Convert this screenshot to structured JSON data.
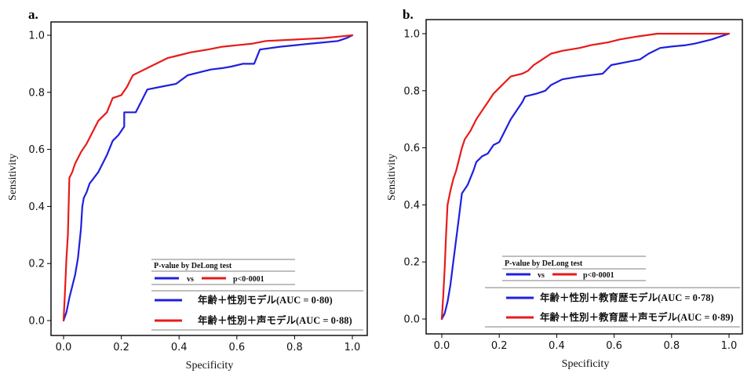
{
  "chart_data": [
    {
      "type": "line",
      "panel": "a.",
      "xlabel": "Specificity",
      "ylabel": "Sensitivity",
      "xlim": [
        0,
        1
      ],
      "ylim": [
        0,
        1
      ],
      "xticks": [
        "0.0",
        "0.2",
        "0.4",
        "0.6",
        "0.8",
        "1.0"
      ],
      "yticks": [
        "0.0",
        "0.2",
        "0.4",
        "0.6",
        "0.8",
        "1.0"
      ],
      "grid": false,
      "legend_position": "bottom-right",
      "legend": {
        "title": "P-value by DeLong test",
        "vs_label": "vs",
        "p_label": "p<0·0001"
      },
      "series": [
        {
          "name": "年齢＋性別モデル(AUC = 0·80)",
          "color": "#1f1fe0",
          "points": [
            [
              0,
              0
            ],
            [
              0.01,
              0.03
            ],
            [
              0.02,
              0.08
            ],
            [
              0.04,
              0.16
            ],
            [
              0.05,
              0.22
            ],
            [
              0.06,
              0.32
            ],
            [
              0.065,
              0.4
            ],
            [
              0.07,
              0.43
            ],
            [
              0.08,
              0.45
            ],
            [
              0.09,
              0.48
            ],
            [
              0.12,
              0.52
            ],
            [
              0.15,
              0.58
            ],
            [
              0.17,
              0.63
            ],
            [
              0.19,
              0.65
            ],
            [
              0.21,
              0.68
            ],
            [
              0.21,
              0.73
            ],
            [
              0.25,
              0.73
            ],
            [
              0.27,
              0.77
            ],
            [
              0.29,
              0.81
            ],
            [
              0.34,
              0.82
            ],
            [
              0.39,
              0.83
            ],
            [
              0.43,
              0.86
            ],
            [
              0.47,
              0.87
            ],
            [
              0.51,
              0.88
            ],
            [
              0.55,
              0.885
            ],
            [
              0.58,
              0.89
            ],
            [
              0.62,
              0.9
            ],
            [
              0.66,
              0.9
            ],
            [
              0.68,
              0.95
            ],
            [
              0.75,
              0.96
            ],
            [
              0.85,
              0.97
            ],
            [
              0.9,
              0.975
            ],
            [
              0.95,
              0.98
            ],
            [
              0.98,
              0.99
            ],
            [
              1.0,
              1.0
            ]
          ]
        },
        {
          "name": "年齢＋性別＋声モデル(AUC = 0·88)",
          "color": "#e81a1a",
          "points": [
            [
              0,
              0
            ],
            [
              0.005,
              0.1
            ],
            [
              0.01,
              0.22
            ],
            [
              0.015,
              0.3
            ],
            [
              0.02,
              0.5
            ],
            [
              0.03,
              0.52
            ],
            [
              0.04,
              0.55
            ],
            [
              0.05,
              0.57
            ],
            [
              0.06,
              0.59
            ],
            [
              0.08,
              0.62
            ],
            [
              0.1,
              0.66
            ],
            [
              0.12,
              0.7
            ],
            [
              0.15,
              0.73
            ],
            [
              0.17,
              0.78
            ],
            [
              0.2,
              0.79
            ],
            [
              0.22,
              0.82
            ],
            [
              0.23,
              0.84
            ],
            [
              0.24,
              0.86
            ],
            [
              0.26,
              0.87
            ],
            [
              0.3,
              0.89
            ],
            [
              0.32,
              0.9
            ],
            [
              0.36,
              0.92
            ],
            [
              0.4,
              0.93
            ],
            [
              0.44,
              0.94
            ],
            [
              0.5,
              0.95
            ],
            [
              0.55,
              0.96
            ],
            [
              0.6,
              0.965
            ],
            [
              0.65,
              0.97
            ],
            [
              0.7,
              0.98
            ],
            [
              0.8,
              0.985
            ],
            [
              0.9,
              0.99
            ],
            [
              0.95,
              0.995
            ],
            [
              1.0,
              1.0
            ]
          ]
        }
      ]
    },
    {
      "type": "line",
      "panel": "b.",
      "xlabel": "Specificity",
      "ylabel": "Sensitivity",
      "xlim": [
        0,
        1
      ],
      "ylim": [
        0,
        1
      ],
      "xticks": [
        "0.0",
        "0.2",
        "0.4",
        "0.6",
        "0.8",
        "1.0"
      ],
      "yticks": [
        "0.0",
        "0.2",
        "0.4",
        "0.6",
        "0.8",
        "1.0"
      ],
      "grid": false,
      "legend_position": "bottom-right",
      "legend": {
        "title": "P-value by DeLong test",
        "vs_label": "vs",
        "p_label": "p<0·0001"
      },
      "series": [
        {
          "name": "年齢＋性別＋教育歴モデル(AUC = 0·78)",
          "color": "#1f1fe0",
          "points": [
            [
              0,
              0
            ],
            [
              0.01,
              0.02
            ],
            [
              0.02,
              0.06
            ],
            [
              0.03,
              0.12
            ],
            [
              0.04,
              0.2
            ],
            [
              0.05,
              0.28
            ],
            [
              0.06,
              0.36
            ],
            [
              0.07,
              0.44
            ],
            [
              0.09,
              0.47
            ],
            [
              0.11,
              0.52
            ],
            [
              0.12,
              0.55
            ],
            [
              0.14,
              0.57
            ],
            [
              0.16,
              0.58
            ],
            [
              0.18,
              0.61
            ],
            [
              0.2,
              0.62
            ],
            [
              0.22,
              0.66
            ],
            [
              0.24,
              0.7
            ],
            [
              0.26,
              0.73
            ],
            [
              0.28,
              0.76
            ],
            [
              0.29,
              0.78
            ],
            [
              0.33,
              0.79
            ],
            [
              0.36,
              0.8
            ],
            [
              0.38,
              0.82
            ],
            [
              0.42,
              0.84
            ],
            [
              0.48,
              0.85
            ],
            [
              0.52,
              0.855
            ],
            [
              0.56,
              0.86
            ],
            [
              0.59,
              0.89
            ],
            [
              0.64,
              0.9
            ],
            [
              0.69,
              0.91
            ],
            [
              0.72,
              0.93
            ],
            [
              0.76,
              0.95
            ],
            [
              0.8,
              0.955
            ],
            [
              0.85,
              0.96
            ],
            [
              0.88,
              0.965
            ],
            [
              0.9,
              0.97
            ],
            [
              0.94,
              0.98
            ],
            [
              0.97,
              0.99
            ],
            [
              1.0,
              1.0
            ]
          ]
        },
        {
          "name": "年齢＋性別＋教育歴＋声モデル(AUC = 0·89)",
          "color": "#e81a1a",
          "points": [
            [
              0,
              0
            ],
            [
              0.005,
              0.08
            ],
            [
              0.01,
              0.18
            ],
            [
              0.015,
              0.3
            ],
            [
              0.02,
              0.4
            ],
            [
              0.03,
              0.45
            ],
            [
              0.04,
              0.49
            ],
            [
              0.05,
              0.52
            ],
            [
              0.06,
              0.56
            ],
            [
              0.07,
              0.6
            ],
            [
              0.08,
              0.63
            ],
            [
              0.1,
              0.66
            ],
            [
              0.12,
              0.7
            ],
            [
              0.14,
              0.73
            ],
            [
              0.16,
              0.76
            ],
            [
              0.18,
              0.79
            ],
            [
              0.2,
              0.81
            ],
            [
              0.22,
              0.83
            ],
            [
              0.24,
              0.85
            ],
            [
              0.28,
              0.86
            ],
            [
              0.3,
              0.87
            ],
            [
              0.32,
              0.89
            ],
            [
              0.35,
              0.91
            ],
            [
              0.38,
              0.93
            ],
            [
              0.42,
              0.94
            ],
            [
              0.48,
              0.95
            ],
            [
              0.52,
              0.96
            ],
            [
              0.58,
              0.97
            ],
            [
              0.62,
              0.98
            ],
            [
              0.68,
              0.99
            ],
            [
              0.75,
              1.0
            ],
            [
              1.0,
              1.0
            ]
          ]
        }
      ]
    }
  ]
}
